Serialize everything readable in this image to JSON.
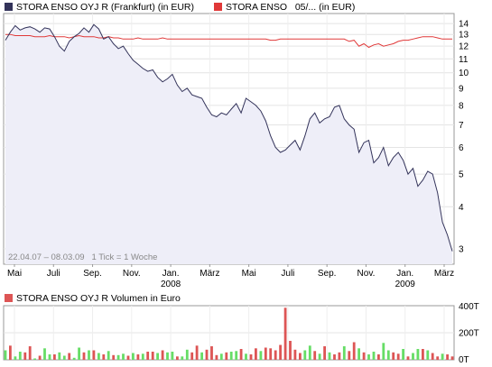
{
  "colors": {
    "price_line": "#33335a",
    "price_fill": "#eeeef8",
    "ref_line": "#e03838",
    "volume_up": "#66dd66",
    "volume_down": "#dd5555",
    "frame": "#999999",
    "grid": "#dddddd"
  },
  "chart_data": [
    {
      "type": "line",
      "legend": [
        {
          "name": "STORA ENSO OYJ R (Frankfurt) (in EUR)",
          "color": "#33335a"
        },
        {
          "name": "STORA ENSO   05/... (in EUR)",
          "color": "#e03838"
        }
      ],
      "y_scale": "log",
      "ylim": [
        2.7,
        15
      ],
      "y_ticks": [
        "14",
        "13",
        "12",
        "11",
        "10",
        "9",
        "8",
        "7",
        "6",
        "5",
        "4",
        "3"
      ],
      "x_ticks": [
        {
          "label": "Mai",
          "year": ""
        },
        {
          "label": "Juli",
          "year": ""
        },
        {
          "label": "Sep.",
          "year": ""
        },
        {
          "label": "Nov.",
          "year": ""
        },
        {
          "label": "Jan.",
          "year": "2008"
        },
        {
          "label": "März",
          "year": ""
        },
        {
          "label": "Mai",
          "year": ""
        },
        {
          "label": "Juli",
          "year": ""
        },
        {
          "label": "Sep.",
          "year": ""
        },
        {
          "label": "Nov.",
          "year": ""
        },
        {
          "label": "Jan.",
          "year": "2009"
        },
        {
          "label": "März",
          "year": ""
        }
      ],
      "range_note": "22.04.07 – 08.03.09   1 Tick = 1 Woche",
      "series": [
        {
          "name": "STORA ENSO OYJ R (Frankfurt) (in EUR)",
          "values": [
            12.5,
            13.2,
            13.8,
            13.4,
            13.6,
            13.7,
            13.5,
            13.2,
            13.6,
            13.5,
            12.8,
            12.0,
            11.6,
            12.4,
            12.8,
            13.1,
            13.6,
            13.2,
            13.9,
            13.5,
            12.6,
            12.8,
            12.2,
            11.8,
            12.0,
            11.4,
            10.9,
            10.6,
            10.3,
            10.1,
            10.2,
            9.7,
            9.4,
            9.6,
            9.9,
            9.2,
            8.8,
            9.0,
            8.6,
            8.5,
            8.4,
            7.9,
            7.5,
            7.4,
            7.6,
            7.5,
            7.8,
            8.1,
            7.6,
            8.4,
            8.2,
            8.0,
            7.7,
            7.2,
            6.5,
            6.0,
            5.8,
            5.9,
            6.1,
            6.3,
            5.9,
            6.5,
            7.3,
            7.6,
            7.1,
            7.3,
            7.4,
            7.9,
            8.0,
            7.3,
            7.0,
            6.8,
            5.8,
            6.2,
            6.3,
            5.4,
            5.6,
            6.0,
            5.3,
            5.6,
            5.8,
            5.5,
            5.0,
            5.2,
            4.6,
            4.8,
            5.1,
            5.0,
            4.4,
            3.6,
            3.3,
            2.95
          ]
        },
        {
          "name": "STORA ENSO   05/... (in EUR)",
          "values": [
            13.0,
            13.0,
            12.9,
            12.9,
            12.9,
            12.9,
            12.8,
            12.8,
            12.8,
            12.9,
            12.8,
            12.8,
            12.8,
            12.7,
            12.8,
            12.9,
            12.8,
            12.8,
            12.8,
            12.7,
            12.7,
            12.8,
            12.7,
            12.7,
            12.6,
            12.6,
            12.6,
            12.7,
            12.6,
            12.6,
            12.6,
            12.6,
            12.7,
            12.6,
            12.6,
            12.6,
            12.6,
            12.6,
            12.6,
            12.6,
            12.6,
            12.6,
            12.6,
            12.6,
            12.6,
            12.6,
            12.6,
            12.6,
            12.6,
            12.6,
            12.6,
            12.6,
            12.6,
            12.6,
            12.5,
            12.5,
            12.6,
            12.6,
            12.6,
            12.6,
            12.6,
            12.6,
            12.6,
            12.6,
            12.6,
            12.6,
            12.6,
            12.6,
            12.6,
            12.6,
            12.4,
            12.5,
            12.0,
            12.2,
            11.9,
            12.1,
            12.2,
            12.0,
            12.1,
            12.2,
            12.4,
            12.5,
            12.5,
            12.6,
            12.7,
            12.8,
            12.8,
            12.8,
            12.7,
            12.6,
            12.6,
            12.6
          ]
        }
      ]
    },
    {
      "type": "bar",
      "legend": [
        {
          "name": "STORA ENSO OYJ R Volumen in Euro",
          "color": "#dd5555"
        }
      ],
      "ylim": [
        0,
        400
      ],
      "y_ticks": [
        "400T",
        "200T",
        "0T"
      ],
      "series": [
        {
          "name": "STORA ENSO OYJ R Volumen in Euro",
          "values": [
            70,
            105,
            25,
            60,
            55,
            100,
            10,
            30,
            85,
            40,
            40,
            55,
            30,
            50,
            15,
            90,
            55,
            70,
            70,
            50,
            40,
            65,
            35,
            35,
            45,
            30,
            50,
            40,
            45,
            60,
            60,
            50,
            70,
            55,
            60,
            25,
            25,
            75,
            55,
            105,
            55,
            75,
            100,
            35,
            45,
            55,
            60,
            65,
            80,
            45,
            40,
            85,
            65,
            90,
            85,
            70,
            110,
            385,
            140,
            75,
            50,
            70,
            105,
            65,
            45,
            100,
            55,
            40,
            55,
            100,
            65,
            130,
            85,
            55,
            40,
            60,
            40,
            125,
            70,
            55,
            45,
            80,
            25,
            50,
            80,
            80,
            70,
            50,
            25,
            45,
            40,
            25
          ],
          "up": [
            1,
            0,
            1,
            1,
            0,
            0,
            1,
            0,
            1,
            1,
            0,
            1,
            1,
            0,
            1,
            1,
            0,
            1,
            0,
            1,
            0,
            1,
            0,
            1,
            1,
            0,
            1,
            0,
            1,
            0,
            0,
            1,
            0,
            1,
            1,
            0,
            1,
            1,
            0,
            0,
            1,
            0,
            0,
            0,
            1,
            0,
            1,
            1,
            0,
            1,
            0,
            0,
            1,
            0,
            0,
            0,
            0,
            0,
            0,
            0,
            0,
            1,
            1,
            0,
            1,
            0,
            1,
            0,
            0,
            1,
            0,
            0,
            1,
            0,
            1,
            1,
            0,
            1,
            1,
            0,
            0,
            1,
            0,
            1,
            1,
            0,
            1,
            0,
            0,
            1,
            0,
            0
          ]
        }
      ]
    }
  ]
}
